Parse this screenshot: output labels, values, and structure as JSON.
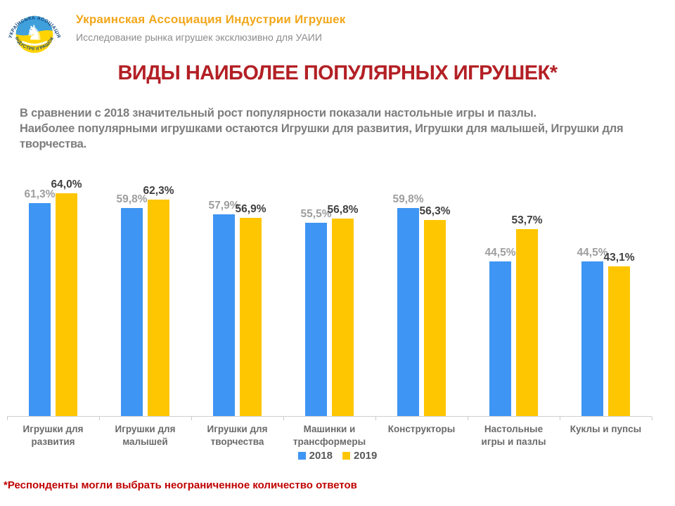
{
  "header": {
    "org_name": "Украинская Ассоциация Индустрии Игрушек",
    "subtitle": "Исследование рынка игрушек эксклюзивно для УАИИ",
    "logo": {
      "top_arc_text": "УКРАЇНСЬКА АСОЦІАЦІЯ",
      "bottom_arc_text": "ІНДУСТРІЇ ІГРАШОК",
      "icon": "rocking-horse-icon",
      "colors": {
        "blue": "#3FA0DC",
        "yellow": "#FFD402",
        "text": "#15477D"
      }
    }
  },
  "title": "ВИДЫ НАИБОЛЕЕ ПОПУЛЯРНЫХ ИГРУШЕК*",
  "description_lines": [
    "В сравнении с 2018 значительный рост популярности показали настольные игры и пазлы.",
    "Наиболее популярными игрушками остаются Игрушки для развития, Игрушки для малышей, Игрушки для творчества."
  ],
  "chart_data": {
    "type": "bar",
    "title": "ВИДЫ НАИБОЛЕЕ ПОПУЛЯРНЫХ ИГРУШЕК*",
    "categories": [
      "Игрушки для развития",
      "Игрушки для малышей",
      "Игрушки для творчества",
      "Машинки и трансформеры",
      "Конструкторы",
      "Настольные игры и пазлы",
      "Куклы и пупсы"
    ],
    "series": [
      {
        "name": "2018",
        "color": "#3E95F3",
        "label_color": "#9E9E9E",
        "values": [
          61.3,
          59.8,
          57.9,
          55.5,
          59.8,
          44.5,
          44.5
        ],
        "labels": [
          "61,3%",
          "59,8%",
          "57,9%",
          "55,5%",
          "59,8%",
          "44,5%",
          "44,5%"
        ]
      },
      {
        "name": "2019",
        "color": "#FEC601",
        "label_color": "#404040",
        "values": [
          64.0,
          62.3,
          56.9,
          56.8,
          56.3,
          53.7,
          43.1
        ],
        "labels": [
          "64,0%",
          "62,3%",
          "56,9%",
          "56,8%",
          "56,3%",
          "53,7%",
          "43,1%"
        ]
      }
    ],
    "value_suffix": "%",
    "ylim": [
      0,
      71.7
    ],
    "grid": false,
    "legend_position": "bottom"
  },
  "legend": [
    {
      "label": "2018",
      "color": "#3E95F3"
    },
    {
      "label": "2019",
      "color": "#FEC601"
    }
  ],
  "footnote": {
    "asterisk": "*",
    "text": "Респонденты могли выбрать неограниченное количество ответов"
  }
}
